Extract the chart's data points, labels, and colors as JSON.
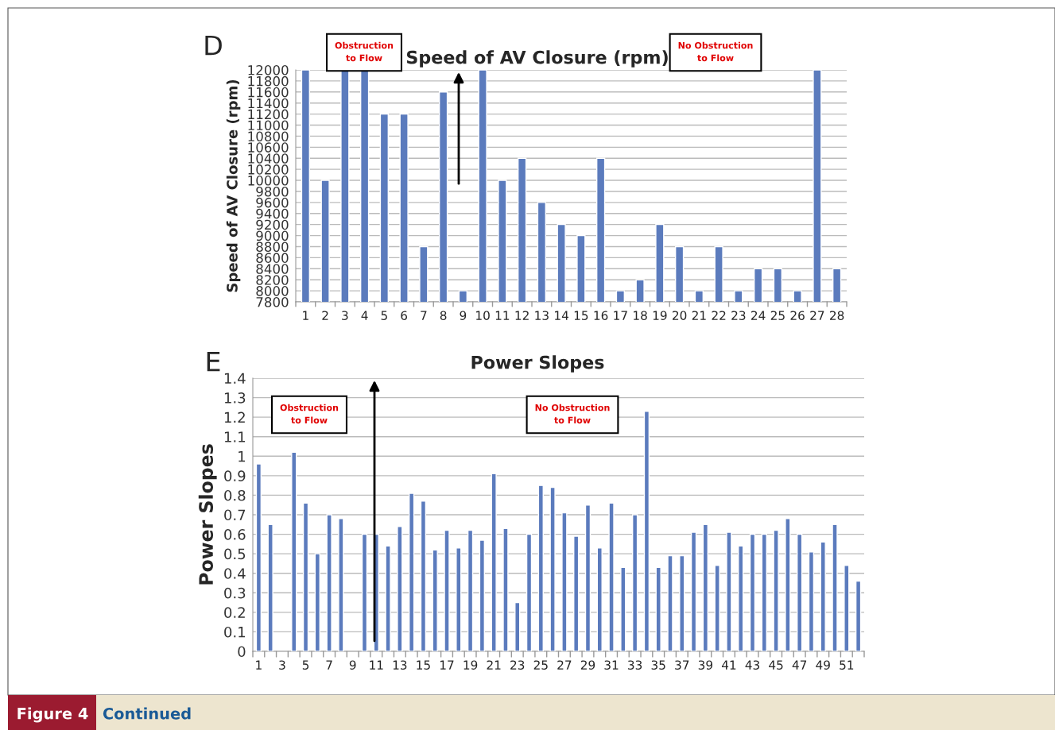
{
  "chart_data": [
    {
      "type": "bar",
      "title": "Speed of AV Closure (rpm)",
      "ylabel": "Speed of AV Closure (rpm)",
      "categories": [
        "1",
        "2",
        "3",
        "4",
        "5",
        "6",
        "7",
        "8",
        "9",
        "10",
        "11",
        "12",
        "13",
        "14",
        "15",
        "16",
        "17",
        "18",
        "19",
        "20",
        "21",
        "22",
        "23",
        "24",
        "25",
        "26",
        "27",
        "28"
      ],
      "values": [
        12000,
        10000,
        12000,
        12000,
        11200,
        11200,
        8800,
        11600,
        8000,
        12000,
        10000,
        10400,
        9600,
        9200,
        9000,
        10400,
        8000,
        8200,
        9200,
        8800,
        8000,
        8800,
        8000,
        8400,
        8400,
        8000,
        12000,
        8400
      ],
      "color": "#5b7bbd",
      "ylim": [
        7800,
        12000
      ],
      "yticks": [
        7800,
        8000,
        8200,
        8400,
        8600,
        8800,
        9000,
        9200,
        9400,
        9600,
        9800,
        10000,
        10200,
        10400,
        10600,
        10800,
        11000,
        11200,
        11400,
        11600,
        11800,
        12000
      ],
      "grid": "y",
      "annotations": [
        "D",
        "Obstruction\nto Flow",
        "No Obstruction\nto Flow"
      ]
    },
    {
      "type": "bar",
      "title": "Power Slopes",
      "ylabel": "Power Slopes",
      "categories": [
        "1",
        null,
        "3",
        null,
        "5",
        null,
        "7",
        null,
        "9",
        null,
        "11",
        null,
        "13",
        null,
        "15",
        null,
        "17",
        null,
        "19",
        null,
        "21",
        null,
        "23",
        null,
        "25",
        null,
        "27",
        null,
        "29",
        null,
        "31",
        null,
        "33",
        null,
        "35",
        null,
        "37",
        null,
        "39",
        null,
        "41",
        null,
        "43",
        null,
        "45",
        null,
        "47",
        null,
        "49",
        null,
        "51",
        null
      ],
      "values": [
        0.96,
        0.65,
        null,
        1.02,
        0.76,
        0.5,
        0.7,
        0.68,
        null,
        0.6,
        0.6,
        0.54,
        0.64,
        0.81,
        0.77,
        0.52,
        0.62,
        0.53,
        0.62,
        0.57,
        0.91,
        0.63,
        0.25,
        0.6,
        0.85,
        0.84,
        0.71,
        0.59,
        0.75,
        0.53,
        0.76,
        0.43,
        0.7,
        1.23,
        0.43,
        0.49,
        0.49,
        0.61,
        0.65,
        0.44,
        0.61,
        0.54,
        0.6,
        0.6,
        0.62,
        0.68,
        0.6,
        0.51,
        0.56,
        0.65,
        0.44,
        0.36
      ],
      "color": "#5b7bbd",
      "ylim": [
        0,
        1.4
      ],
      "yticks": [
        0,
        0.1,
        0.2,
        0.3,
        0.4,
        0.5,
        0.6,
        0.7,
        0.8,
        0.9,
        1,
        1.1,
        1.2,
        1.3,
        1.4
      ],
      "grid": "y",
      "annotations": [
        "E",
        "Obstruction\nto Flow",
        "No Obstruction\nto Flow",
        "Figure 4",
        "Continued"
      ]
    }
  ]
}
